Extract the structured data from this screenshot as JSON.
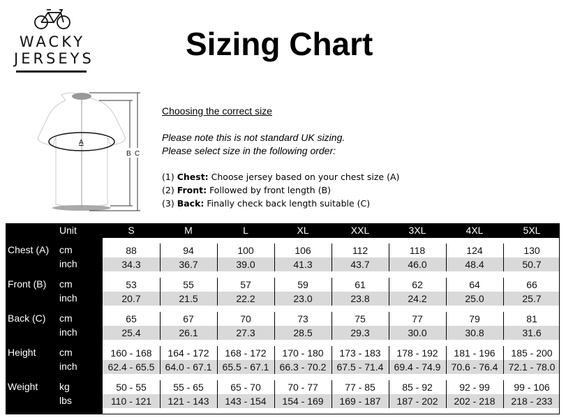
{
  "logo": {
    "line1": "WACKY",
    "line2": "JERSEYS",
    "icon": "bicycle-icon"
  },
  "title": "Sizing Chart",
  "diagram": {
    "label_a": "A",
    "label_b": "B",
    "label_c": "C"
  },
  "instructions": {
    "heading": "Choosing the correct size",
    "note1": "Please note this is not standard UK sizing.",
    "note2": "Please select size in the following order:",
    "steps": [
      {
        "num": "(1)",
        "bold": "Chest:",
        "text": "Choose jersey based on your chest size (A)"
      },
      {
        "num": "(2)",
        "bold": "Front:",
        "text": "Followed by front length (B)"
      },
      {
        "num": "(3)",
        "bold": "Back:",
        "text": "Finally check back length suitable (C)"
      }
    ]
  },
  "table": {
    "unit_header": "Unit",
    "sizes": [
      "S",
      "M",
      "L",
      "XL",
      "XXL",
      "3XL",
      "4XL",
      "5XL"
    ],
    "groups": [
      {
        "label": "Chest (A)",
        "units": [
          "cm",
          "inch"
        ],
        "rows": [
          [
            "88",
            "94",
            "100",
            "106",
            "112",
            "118",
            "124",
            "130"
          ],
          [
            "34.3",
            "36.7",
            "39.0",
            "41.3",
            "43.7",
            "46.0",
            "48.4",
            "50.7"
          ]
        ]
      },
      {
        "label": "Front (B)",
        "units": [
          "cm",
          "inch"
        ],
        "rows": [
          [
            "53",
            "55",
            "57",
            "59",
            "61",
            "62",
            "64",
            "66"
          ],
          [
            "20.7",
            "21.5",
            "22.2",
            "23.0",
            "23.8",
            "24.2",
            "25.0",
            "25.7"
          ]
        ]
      },
      {
        "label": "Back (C)",
        "units": [
          "cm",
          "inch"
        ],
        "rows": [
          [
            "65",
            "67",
            "70",
            "73",
            "75",
            "77",
            "79",
            "81"
          ],
          [
            "25.4",
            "26.1",
            "27.3",
            "28.5",
            "29.3",
            "30.0",
            "30.8",
            "31.6"
          ]
        ]
      },
      {
        "label": "Height",
        "units": [
          "cm",
          "inch"
        ],
        "rows": [
          [
            "160 - 168",
            "164 - 172",
            "168 - 172",
            "170 - 180",
            "173 - 183",
            "178 - 192",
            "181 - 196",
            "185 - 200"
          ],
          [
            "62.4 - 65.5",
            "64.0 - 67.1",
            "65.5 - 67.1",
            "66.3 - 70.2",
            "67.5 - 71.4",
            "69.4 - 74.9",
            "70.6 - 76.4",
            "72.1 - 78.0"
          ]
        ]
      },
      {
        "label": "Weight",
        "units": [
          "kg",
          "lbs"
        ],
        "rows": [
          [
            "50 - 55",
            "55 - 65",
            "65 - 70",
            "70 - 77",
            "77 - 85",
            "85 - 92",
            "92 - 99",
            "99 - 106"
          ],
          [
            "110 - 121",
            "121 - 143",
            "143 - 154",
            "154 - 169",
            "169 - 187",
            "187 - 202",
            "202 - 218",
            "218 - 233"
          ]
        ]
      }
    ]
  }
}
